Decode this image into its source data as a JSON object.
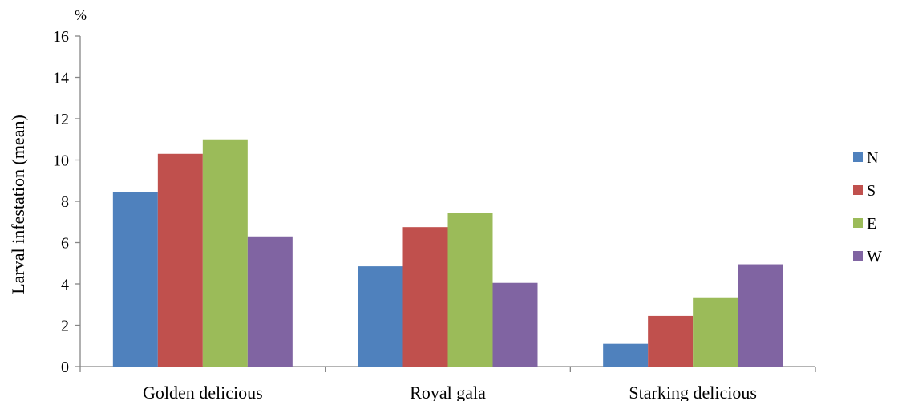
{
  "chart_data": {
    "type": "bar",
    "title": "",
    "unit_label": "%",
    "ylabel": "Larval  infestation (mean)",
    "xlabel": "",
    "ylim": [
      0,
      16
    ],
    "yticks": [
      0,
      2,
      4,
      6,
      8,
      10,
      12,
      14,
      16
    ],
    "grid": false,
    "legend_position": "right",
    "categories": [
      "Golden delicious",
      "Royal gala",
      "Starking delicious"
    ],
    "series": [
      {
        "name": "N",
        "color": "#4F81BD",
        "values": [
          8.45,
          4.85,
          1.1
        ]
      },
      {
        "name": "S",
        "color": "#C0504D",
        "values": [
          10.3,
          6.75,
          2.45
        ]
      },
      {
        "name": "E",
        "color": "#9BBB59",
        "values": [
          11.0,
          7.45,
          3.35
        ]
      },
      {
        "name": "W",
        "color": "#8064A2",
        "values": [
          6.3,
          4.05,
          4.95
        ]
      }
    ]
  }
}
